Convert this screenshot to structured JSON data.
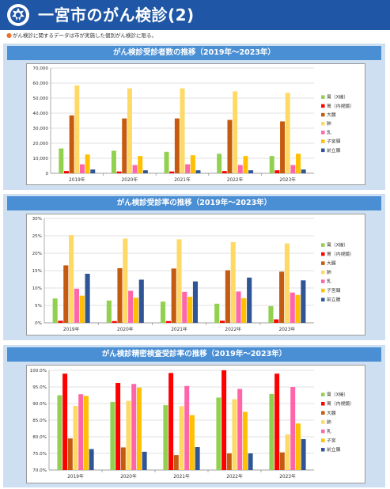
{
  "header": {
    "title": "一宮市のがん検診(2)",
    "logo": "city-emblem-icon",
    "bg_color": "#1f57a6"
  },
  "note": "がん検診に関するデータは市が実施した個別がん検診に限る。",
  "chart_data": [
    {
      "type": "bar",
      "title": "がん検診受診者数の推移（2019年～2023年）",
      "categories": [
        "2019年",
        "2020年",
        "2021年",
        "2022年",
        "2023年"
      ],
      "ylim": [
        0,
        70000
      ],
      "yticks": [
        0,
        10000,
        20000,
        30000,
        40000,
        50000,
        60000,
        70000
      ],
      "ytick_labels": [
        "0",
        "10,000",
        "20,000",
        "30,000",
        "40,000",
        "50,000",
        "60,000",
        "70,000"
      ],
      "grid": true,
      "legend_position": "right",
      "series": [
        {
          "name": "胃（X線）",
          "color": "#92d050",
          "values": [
            16500,
            15000,
            14300,
            13000,
            11500
          ]
        },
        {
          "name": "胃（内視鏡）",
          "color": "#ff0000",
          "values": [
            1500,
            1200,
            1200,
            1500,
            2000
          ]
        },
        {
          "name": "大腸",
          "color": "#c55a11",
          "values": [
            38500,
            36500,
            36500,
            35500,
            34500
          ]
        },
        {
          "name": "肺",
          "color": "#ffd966",
          "values": [
            58500,
            56500,
            56500,
            54500,
            53500
          ]
        },
        {
          "name": "乳",
          "color": "#ff66aa",
          "values": [
            6000,
            5500,
            6000,
            5500,
            5500
          ]
        },
        {
          "name": "子宮頸",
          "color": "#ffc000",
          "values": [
            12500,
            11500,
            12000,
            11500,
            13000
          ]
        },
        {
          "name": "前立腺",
          "color": "#2f5597",
          "values": [
            2500,
            2000,
            2000,
            2000,
            2500
          ]
        }
      ]
    },
    {
      "type": "bar",
      "title": "がん検診受診率の推移（2019年～2023年）",
      "categories": [
        "2019年",
        "2020年",
        "2021年",
        "2022年",
        "2023年"
      ],
      "ylim": [
        0,
        30
      ],
      "yticks": [
        0,
        5,
        10,
        15,
        20,
        25,
        30
      ],
      "ytick_labels": [
        "0%",
        "5%",
        "10%",
        "15%",
        "20%",
        "25%",
        "30%"
      ],
      "grid": true,
      "legend_position": "right",
      "series": [
        {
          "name": "胃（X線）",
          "color": "#92d050",
          "values": [
            7.0,
            6.4,
            6.1,
            5.5,
            4.8
          ]
        },
        {
          "name": "胃（内視鏡）",
          "color": "#ff0000",
          "values": [
            0.6,
            0.5,
            0.5,
            0.6,
            1.0
          ]
        },
        {
          "name": "大腸",
          "color": "#c55a11",
          "values": [
            16.5,
            15.7,
            15.6,
            15.1,
            14.7
          ]
        },
        {
          "name": "肺",
          "color": "#ffd966",
          "values": [
            25.2,
            24.2,
            24.0,
            23.2,
            22.8
          ]
        },
        {
          "name": "乳",
          "color": "#ff66aa",
          "values": [
            9.8,
            9.2,
            8.9,
            9.0,
            8.7
          ]
        },
        {
          "name": "子宮頸",
          "color": "#ffc000",
          "values": [
            7.8,
            7.2,
            7.5,
            7.1,
            8.0
          ]
        },
        {
          "name": "前立腺",
          "color": "#2f5597",
          "values": [
            14.1,
            12.4,
            11.9,
            13.0,
            12.2
          ]
        }
      ]
    },
    {
      "type": "bar",
      "title": "がん検診精密検査受診率の推移（2019年～2023年）",
      "categories": [
        "2019年",
        "2020年",
        "2021年",
        "2022年",
        "2023年"
      ],
      "ylim": [
        70,
        100
      ],
      "yticks": [
        70,
        75,
        80,
        85,
        90,
        95,
        100
      ],
      "ytick_labels": [
        "70.0%",
        "75.0%",
        "80.0%",
        "85.0%",
        "90.0%",
        "95.0%",
        "100.0%"
      ],
      "grid": true,
      "legend_position": "right",
      "series": [
        {
          "name": "胃（X線）",
          "color": "#92d050",
          "values": [
            92.5,
            90.5,
            89.5,
            91.8,
            92.9
          ]
        },
        {
          "name": "胃（内視鏡）",
          "color": "#ff0000",
          "values": [
            99.0,
            96.2,
            99.2,
            100.0,
            99.0
          ]
        },
        {
          "name": "大腸",
          "color": "#c55a11",
          "values": [
            79.5,
            76.8,
            74.5,
            75.0,
            75.3
          ]
        },
        {
          "name": "肺",
          "color": "#ffd966",
          "values": [
            89.3,
            90.8,
            89.2,
            91.3,
            80.7
          ]
        },
        {
          "name": "乳",
          "color": "#ff66aa",
          "values": [
            92.8,
            95.9,
            95.3,
            94.4,
            95.0
          ]
        },
        {
          "name": "子宮",
          "color": "#ffc000",
          "values": [
            92.3,
            94.8,
            86.5,
            87.5,
            84.0
          ]
        },
        {
          "name": "前立腺",
          "color": "#2f5597",
          "values": [
            76.3,
            75.5,
            76.9,
            75.0,
            79.3
          ]
        }
      ]
    }
  ]
}
